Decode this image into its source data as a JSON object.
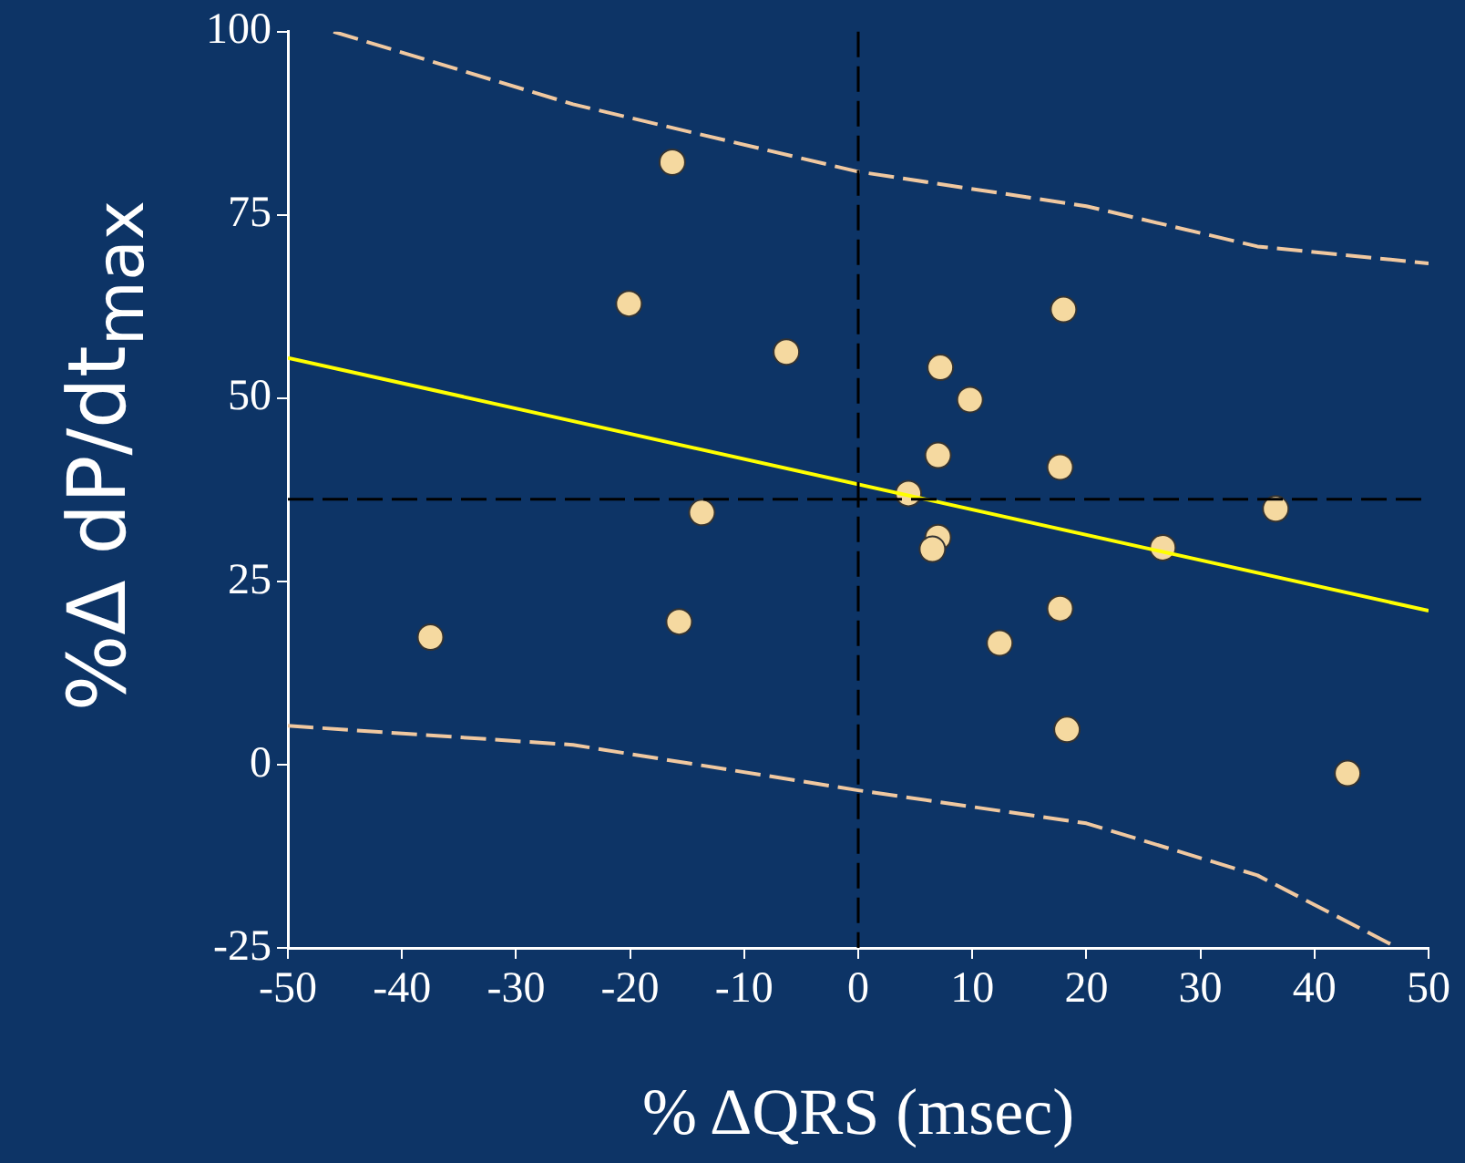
{
  "chart_data": {
    "type": "scatter",
    "xlabel": "% ΔQRS (msec)",
    "ylabel": "%Δ dP/dt$_{max}$",
    "xlim": [
      -50,
      50
    ],
    "xticks": [
      -50,
      -40,
      -30,
      -20,
      -10,
      0,
      10,
      20,
      30,
      40,
      50
    ],
    "ylim": [
      -25,
      100
    ],
    "yticks": [
      -25,
      0,
      25,
      50,
      75,
      100
    ],
    "grid": false,
    "legend": false,
    "series": [
      {
        "type": "line",
        "color": "#ffff00",
        "x": [
          -50,
          50
        ],
        "values": [
          55.5,
          21.0
        ],
        "marker": "none"
      },
      {
        "type": "line",
        "color": "#f0c8a0",
        "line_style": "dashed",
        "x": [
          -46,
          -25,
          0,
          20,
          35,
          50
        ],
        "values": [
          100,
          90.1,
          80.9,
          76.2,
          70.7,
          68.4
        ],
        "marker": "none"
      },
      {
        "type": "line",
        "color": "#f0c8a0",
        "line_style": "dashed",
        "x": [
          -50,
          -25,
          0,
          20,
          35,
          46.7
        ],
        "values": [
          5.3,
          2.7,
          -3.5,
          -8.0,
          -15.1,
          -24.5
        ],
        "marker": "none"
      },
      {
        "color": "#f5d9a0",
        "marker": "circle",
        "x": [
          -37.5,
          -16.3,
          -20.1,
          -6.3,
          -13.7,
          -15.7,
          7.2,
          9.8,
          7.0,
          4.4,
          7.0,
          6.5,
          18.0,
          17.7,
          17.7,
          12.4,
          18.3,
          26.7,
          36.6,
          42.9
        ],
        "values": [
          17.4,
          82.2,
          62.9,
          56.3,
          34.4,
          19.5,
          54.2,
          49.8,
          42.2,
          37.0,
          31.0,
          29.4,
          62.1,
          40.6,
          21.3,
          16.6,
          4.8,
          29.6,
          34.9,
          -1.2
        ]
      }
    ],
    "ref_lines": [
      {
        "axis": "x",
        "value": 0,
        "color": "#000000",
        "line_style": "dashed"
      },
      {
        "axis": "y",
        "value": 36.2,
        "color": "#000000",
        "line_style": "dashed"
      }
    ]
  }
}
